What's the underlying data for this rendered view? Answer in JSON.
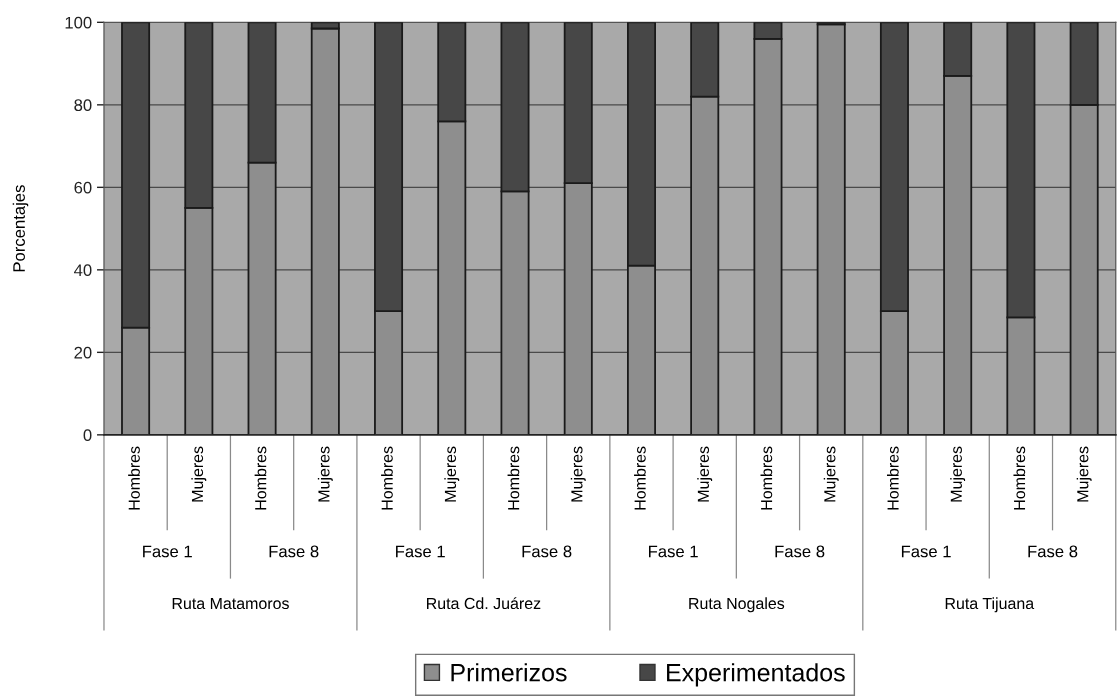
{
  "chart_data": {
    "type": "bar",
    "stacked": true,
    "ylabel": "Porcentajes",
    "categories": [
      "Hombres",
      "Mujeres",
      "Hombres",
      "Mujeres",
      "Hombres",
      "Mujeres",
      "Hombres",
      "Mujeres",
      "Hombres",
      "Mujeres",
      "Hombres",
      "Mujeres",
      "Hombres",
      "Mujeres",
      "Hombres",
      "Mujeres"
    ],
    "annotations": [
      "Fase 1",
      "Fase 8",
      "Fase 1",
      "Fase 8",
      "Fase 1",
      "Fase 8",
      "Fase 1",
      "Fase 8",
      "Ruta Matamoros",
      "Ruta Cd. Juárez",
      "Ruta Nogales",
      "Ruta Tijuana"
    ],
    "series": [
      {
        "name": "Primerizos",
        "color": "#8e8e8e",
        "values": [
          26,
          55,
          66,
          98.5,
          30,
          76,
          59,
          61,
          41,
          82,
          96,
          99.5,
          30,
          87,
          28.5,
          80
        ]
      },
      {
        "name": "Experimentados",
        "color": "#474747",
        "values": [
          74,
          45,
          34,
          1.5,
          70,
          24,
          41,
          39,
          59,
          18,
          4,
          0.5,
          70,
          13,
          71.5,
          20
        ]
      }
    ],
    "ylim": [
      0,
      100
    ],
    "yticks": [
      0,
      20,
      40,
      60,
      80,
      100
    ],
    "grid": "y",
    "legend": "bottom"
  }
}
